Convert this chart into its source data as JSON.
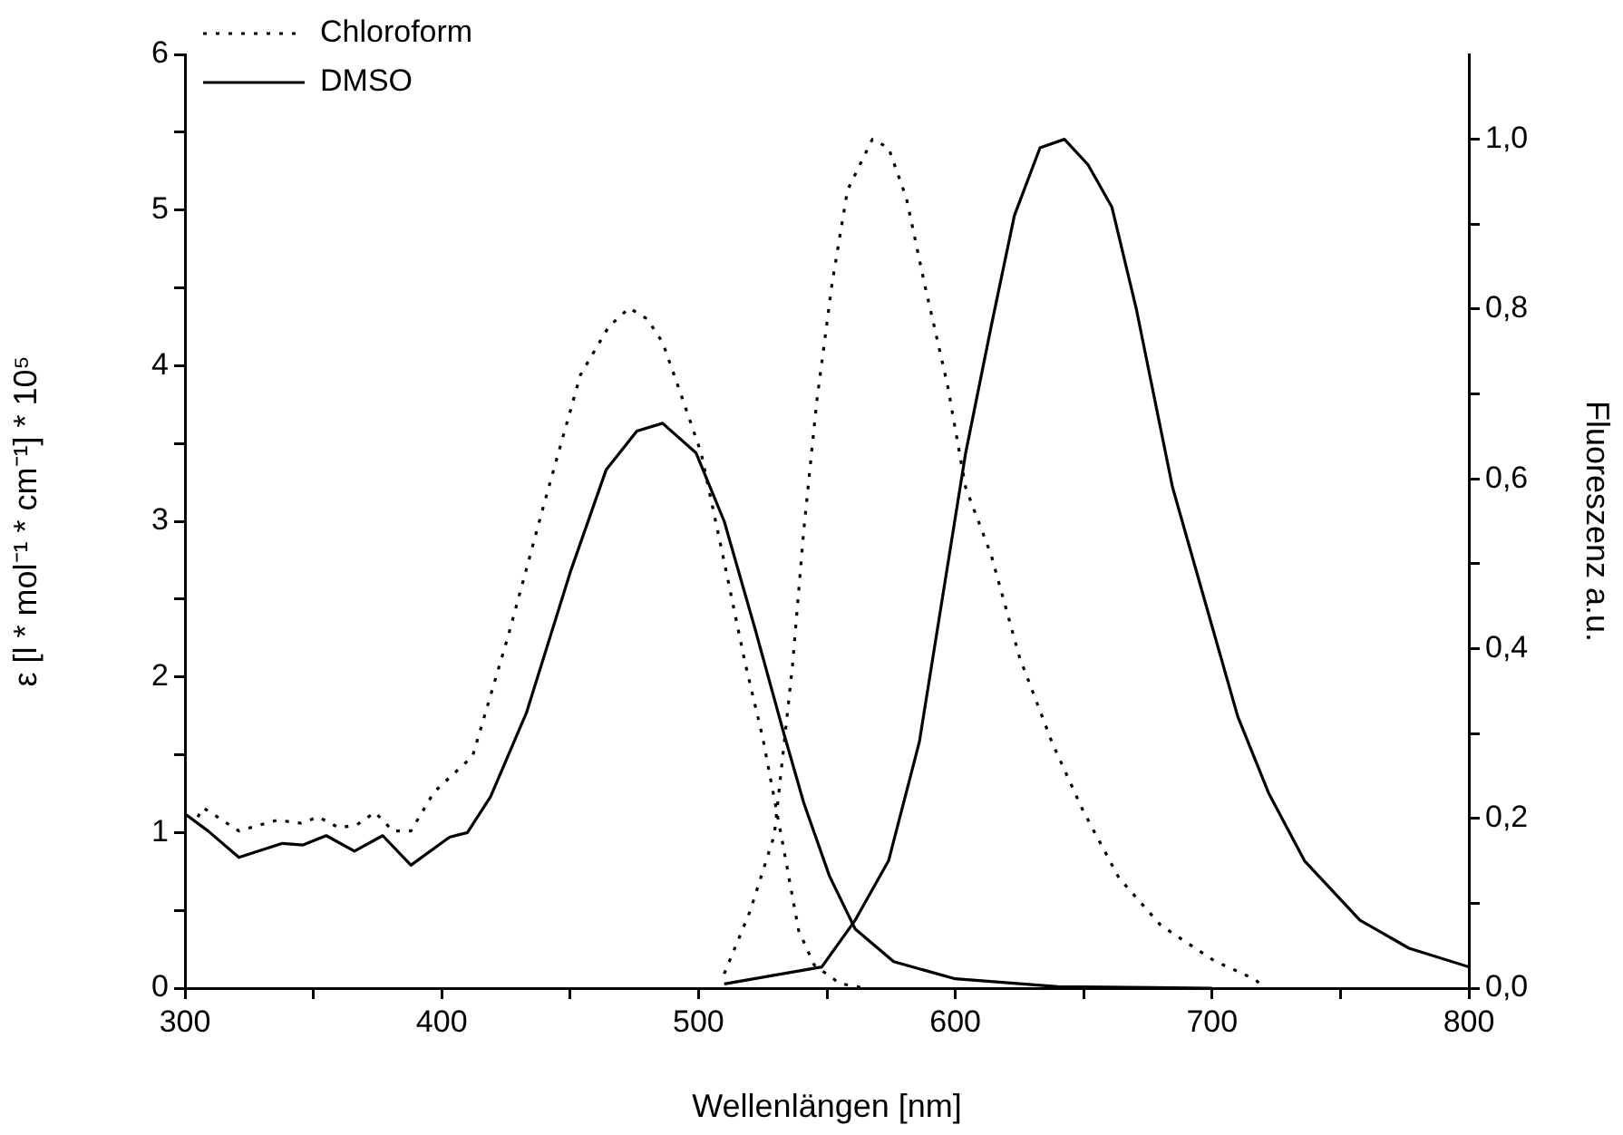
{
  "chart_data": {
    "type": "line",
    "xlabel": "Wellenlängen [nm]",
    "ylabel": "ε [l * mol⁻¹ * cm⁻¹] * 10⁵",
    "y2label": "Fluoreszenz a.u.",
    "xlim": [
      300,
      800
    ],
    "xticks": [
      300,
      {
        "value": 350,
        "label": null
      },
      400,
      {
        "value": 450,
        "label": null
      },
      500,
      {
        "value": 550,
        "label": null
      },
      600,
      {
        "value": 650,
        "label": null
      },
      700,
      {
        "value": 750,
        "label": null
      },
      800
    ],
    "ylim": [
      0,
      6
    ],
    "yticks": [
      0,
      {
        "value": 0.5,
        "label": null
      },
      1,
      {
        "value": 1.5,
        "label": null
      },
      2,
      {
        "value": 2.5,
        "label": null
      },
      3,
      {
        "value": 3.5,
        "label": null
      },
      4,
      {
        "value": 4.5,
        "label": null
      },
      5,
      {
        "value": 5.5,
        "label": null
      },
      6
    ],
    "y2lim": [
      0,
      1.1
    ],
    "y2ticks": [
      {
        "value": 0,
        "label": "0,0"
      },
      {
        "value": 0.1,
        "label": null
      },
      {
        "value": 0.2,
        "label": "0,2"
      },
      {
        "value": 0.3,
        "label": null
      },
      {
        "value": 0.4,
        "label": "0,4"
      },
      {
        "value": 0.5,
        "label": null
      },
      {
        "value": 0.6,
        "label": "0,6"
      },
      {
        "value": 0.7,
        "label": null
      },
      {
        "value": 0.8,
        "label": "0,8"
      },
      {
        "value": 0.9,
        "label": null
      },
      {
        "value": 1.0,
        "label": "1,0"
      }
    ],
    "grid": false,
    "legend": "top left",
    "marker": "none",
    "series": [
      {
        "name": "Chloroform",
        "color": "#000000",
        "line_style": "dotted",
        "x": [
          305,
          307,
          321,
          336,
          345,
          352,
          360,
          367,
          374,
          381,
          388,
          397,
          412,
          426,
          440,
          454,
          465,
          473,
          480,
          486,
          492,
          501,
          510,
          518,
          525,
          532,
          539,
          545,
          555,
          565
        ],
        "values": [
          1.1,
          1.16,
          1.01,
          1.08,
          1.06,
          1.1,
          1.03,
          1.05,
          1.13,
          1.01,
          1.01,
          1.26,
          1.49,
          2.27,
          3.12,
          3.94,
          4.25,
          4.37,
          4.3,
          4.15,
          3.87,
          3.44,
          2.74,
          2.1,
          1.61,
          1.0,
          0.37,
          0.15,
          0.03,
          0.0
        ]
      },
      {
        "name": "DMSO",
        "color": "#000000",
        "line_style": "solid",
        "x": [
          300,
          309,
          321,
          338,
          346,
          355,
          366,
          377,
          388,
          403,
          410,
          419,
          433,
          450,
          464,
          476,
          486,
          499,
          510,
          522,
          533,
          541,
          551,
          561,
          576,
          600,
          640,
          700
        ],
        "values": [
          1.12,
          1.01,
          0.84,
          0.93,
          0.92,
          0.98,
          0.88,
          0.98,
          0.79,
          0.97,
          1.0,
          1.23,
          1.77,
          2.67,
          3.33,
          3.58,
          3.63,
          3.44,
          3.0,
          2.31,
          1.65,
          1.19,
          0.72,
          0.38,
          0.17,
          0.06,
          0.01,
          0.0
        ]
      },
      {
        "color": "#000000",
        "line_style": "dotted",
        "axis": "y2",
        "x": [
          510,
          520,
          529.5,
          536.6,
          541,
          546,
          552,
          558,
          567.7,
          574,
          581,
          588,
          597,
          604,
          614,
          625,
          637.6,
          649.6,
          663.7,
          680,
          701,
          717,
          720
        ],
        "values": [
          0.017,
          0.09,
          0.18,
          0.38,
          0.54,
          0.69,
          0.83,
          0.94,
          1.0,
          0.99,
          0.93,
          0.83,
          0.71,
          0.59,
          0.51,
          0.39,
          0.29,
          0.21,
          0.13,
          0.074,
          0.032,
          0.01,
          0.0
        ]
      },
      {
        "color": "#000000",
        "line_style": "solid",
        "axis": "y2",
        "x": [
          510,
          548,
          561,
          574,
          586,
          595,
          604,
          614,
          623,
          633,
          642.5,
          651.7,
          661,
          670.5,
          684.6,
          698.7,
          710,
          722,
          736,
          757.6,
          776.7,
          800
        ],
        "values": [
          0.005,
          0.025,
          0.08,
          0.15,
          0.29,
          0.46,
          0.63,
          0.78,
          0.91,
          0.99,
          1.0,
          0.97,
          0.92,
          0.8,
          0.59,
          0.44,
          0.32,
          0.23,
          0.15,
          0.08,
          0.047,
          0.025
        ]
      }
    ]
  }
}
